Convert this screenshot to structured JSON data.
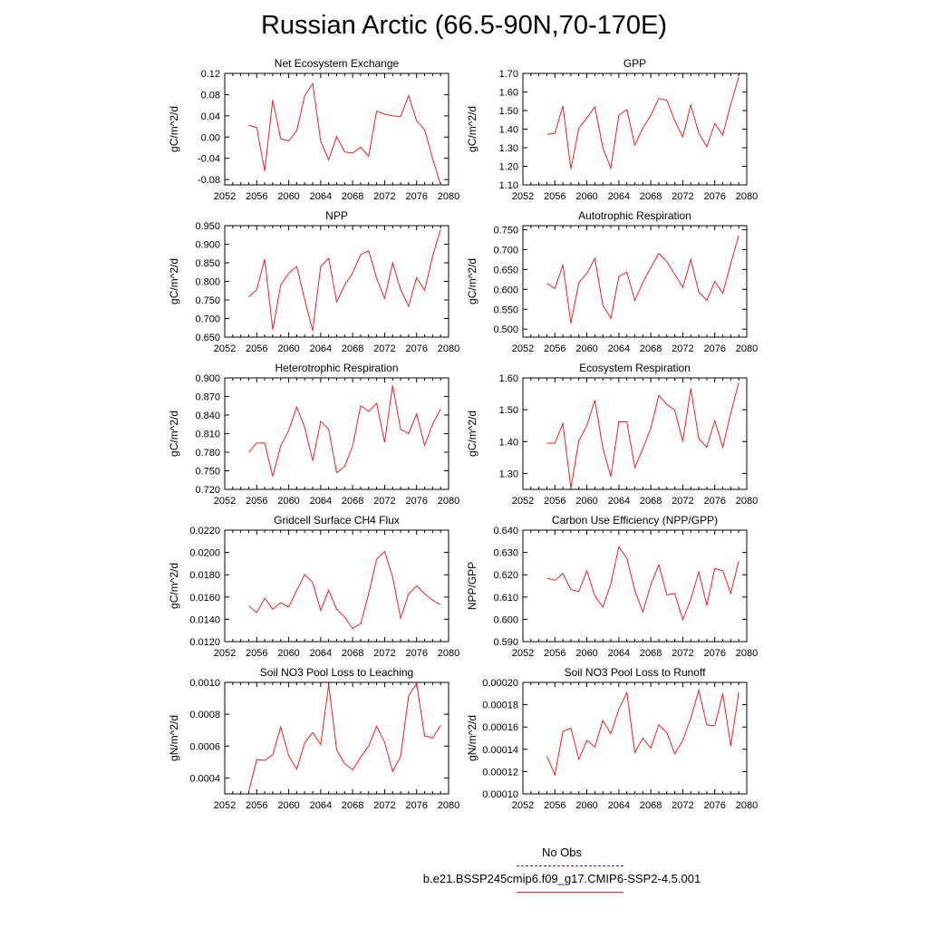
{
  "title": "Russian Arctic (66.5-90N,70-170E)",
  "legend": {
    "obs_label": "No Obs",
    "model_label": "b.e21.BSSP245cmip6.f09_g17.CMIP6-SSP2-4.5.001",
    "obs_color": "#2222cc",
    "model_color": "#ee2222"
  },
  "chart_data": [
    {
      "type": "line",
      "title": "Net Ecosystem Exchange",
      "ylabel": "gC/m^2/d",
      "xlim": [
        2052,
        2080
      ],
      "ylim": [
        -0.09,
        0.12
      ],
      "xticks": [
        "2052",
        "2056",
        "2060",
        "2064",
        "2068",
        "2072",
        "2076",
        "2080"
      ],
      "yticks": [
        "0.12",
        "0.08",
        "0.04",
        "0.00",
        "-0.04",
        "-0.08"
      ],
      "ytick_values": [
        0.12,
        0.08,
        0.04,
        0.0,
        -0.04,
        -0.08
      ],
      "x": [
        2055,
        2056,
        2057,
        2058,
        2059,
        2060,
        2061,
        2062,
        2063,
        2064,
        2065,
        2066,
        2067,
        2068,
        2069,
        2070,
        2071,
        2072,
        2073,
        2074,
        2075,
        2076,
        2077,
        2078,
        2079
      ],
      "series": [
        {
          "values": [
            0.022,
            0.018,
            -0.064,
            0.07,
            -0.003,
            -0.007,
            0.012,
            0.078,
            0.101,
            -0.008,
            -0.043,
            0.001,
            -0.028,
            -0.03,
            -0.019,
            -0.036,
            0.049,
            0.043,
            0.04,
            0.039,
            0.078,
            0.031,
            0.014,
            -0.04,
            -0.09
          ]
        }
      ]
    },
    {
      "type": "line",
      "title": "GPP",
      "ylabel": "gC/m^2/d",
      "xlim": [
        2052,
        2080
      ],
      "ylim": [
        1.1,
        1.7
      ],
      "xticks": [
        "2052",
        "2056",
        "2060",
        "2064",
        "2068",
        "2072",
        "2076",
        "2080"
      ],
      "yticks": [
        "1.70",
        "1.60",
        "1.50",
        "1.40",
        "1.30",
        "1.20",
        "1.10"
      ],
      "ytick_values": [
        1.7,
        1.6,
        1.5,
        1.4,
        1.3,
        1.2,
        1.1
      ],
      "x": [
        2055,
        2056,
        2057,
        2058,
        2059,
        2060,
        2061,
        2062,
        2063,
        2064,
        2065,
        2066,
        2067,
        2068,
        2069,
        2070,
        2071,
        2072,
        2073,
        2074,
        2075,
        2076,
        2077,
        2078,
        2079
      ],
      "series": [
        {
          "values": [
            1.372,
            1.377,
            1.525,
            1.185,
            1.405,
            1.46,
            1.52,
            1.3,
            1.19,
            1.475,
            1.505,
            1.315,
            1.405,
            1.475,
            1.565,
            1.555,
            1.445,
            1.358,
            1.53,
            1.378,
            1.305,
            1.43,
            1.368,
            1.535,
            1.68
          ]
        }
      ]
    },
    {
      "type": "line",
      "title": "NPP",
      "ylabel": "gC/m^2/d",
      "xlim": [
        2052,
        2080
      ],
      "ylim": [
        0.65,
        0.95
      ],
      "xticks": [
        "2052",
        "2056",
        "2060",
        "2064",
        "2068",
        "2072",
        "2076",
        "2080"
      ],
      "yticks": [
        "0.950",
        "0.900",
        "0.850",
        "0.800",
        "0.750",
        "0.700",
        "0.650"
      ],
      "ytick_values": [
        0.95,
        0.9,
        0.85,
        0.8,
        0.75,
        0.7,
        0.65
      ],
      "x": [
        2055,
        2056,
        2057,
        2058,
        2059,
        2060,
        2061,
        2062,
        2063,
        2064,
        2065,
        2066,
        2067,
        2068,
        2069,
        2070,
        2071,
        2072,
        2073,
        2074,
        2075,
        2076,
        2077,
        2078,
        2079
      ],
      "series": [
        {
          "values": [
            0.758,
            0.778,
            0.86,
            0.67,
            0.79,
            0.822,
            0.84,
            0.752,
            0.667,
            0.84,
            0.862,
            0.745,
            0.79,
            0.822,
            0.872,
            0.882,
            0.808,
            0.754,
            0.85,
            0.778,
            0.733,
            0.81,
            0.776,
            0.868,
            0.94
          ]
        }
      ]
    },
    {
      "type": "line",
      "title": "Autotrophic Respiration",
      "ylabel": "gC/m^2/d",
      "xlim": [
        2052,
        2080
      ],
      "ylim": [
        0.48,
        0.76
      ],
      "xticks": [
        "2052",
        "2056",
        "2060",
        "2064",
        "2068",
        "2072",
        "2076",
        "2080"
      ],
      "yticks": [
        "0.750",
        "0.700",
        "0.650",
        "0.600",
        "0.550",
        "0.500"
      ],
      "ytick_values": [
        0.75,
        0.7,
        0.65,
        0.6,
        0.55,
        0.5
      ],
      "x": [
        2055,
        2056,
        2057,
        2058,
        2059,
        2060,
        2061,
        2062,
        2063,
        2064,
        2065,
        2066,
        2067,
        2068,
        2069,
        2070,
        2071,
        2072,
        2073,
        2074,
        2075,
        2076,
        2077,
        2078,
        2079
      ],
      "series": [
        {
          "values": [
            0.615,
            0.602,
            0.662,
            0.515,
            0.617,
            0.64,
            0.678,
            0.56,
            0.527,
            0.632,
            0.643,
            0.572,
            0.617,
            0.655,
            0.69,
            0.67,
            0.638,
            0.605,
            0.675,
            0.593,
            0.572,
            0.62,
            0.59,
            0.665,
            0.735
          ]
        }
      ]
    },
    {
      "type": "line",
      "title": "Heterotrophic Respiration",
      "ylabel": "gC/m^2/d",
      "xlim": [
        2052,
        2080
      ],
      "ylim": [
        0.72,
        0.9
      ],
      "xticks": [
        "2052",
        "2056",
        "2060",
        "2064",
        "2068",
        "2072",
        "2076",
        "2080"
      ],
      "yticks": [
        "0.900",
        "0.870",
        "0.840",
        "0.810",
        "0.780",
        "0.750",
        "0.720"
      ],
      "ytick_values": [
        0.9,
        0.87,
        0.84,
        0.81,
        0.78,
        0.75,
        0.72
      ],
      "x": [
        2055,
        2056,
        2057,
        2058,
        2059,
        2060,
        2061,
        2062,
        2063,
        2064,
        2065,
        2066,
        2067,
        2068,
        2069,
        2070,
        2071,
        2072,
        2073,
        2074,
        2075,
        2076,
        2077,
        2078,
        2079
      ],
      "series": [
        {
          "values": [
            0.78,
            0.795,
            0.795,
            0.741,
            0.79,
            0.815,
            0.853,
            0.82,
            0.766,
            0.83,
            0.817,
            0.747,
            0.757,
            0.79,
            0.855,
            0.846,
            0.859,
            0.796,
            0.888,
            0.817,
            0.81,
            0.842,
            0.791,
            0.825,
            0.85
          ]
        }
      ]
    },
    {
      "type": "line",
      "title": "Ecosystem Respiration",
      "ylabel": "gC/m^2/d",
      "xlim": [
        2052,
        2080
      ],
      "ylim": [
        1.25,
        1.6
      ],
      "xticks": [
        "2052",
        "2056",
        "2060",
        "2064",
        "2068",
        "2072",
        "2076",
        "2080"
      ],
      "yticks": [
        "1.60",
        "1.50",
        "1.40",
        "1.30"
      ],
      "ytick_values": [
        1.6,
        1.5,
        1.4,
        1.3
      ],
      "x": [
        2055,
        2056,
        2057,
        2058,
        2059,
        2060,
        2061,
        2062,
        2063,
        2064,
        2065,
        2066,
        2067,
        2068,
        2069,
        2070,
        2071,
        2072,
        2073,
        2074,
        2075,
        2076,
        2077,
        2078,
        2079
      ],
      "series": [
        {
          "values": [
            1.395,
            1.395,
            1.457,
            1.254,
            1.403,
            1.45,
            1.53,
            1.38,
            1.29,
            1.462,
            1.462,
            1.318,
            1.378,
            1.442,
            1.545,
            1.517,
            1.498,
            1.4,
            1.567,
            1.41,
            1.382,
            1.466,
            1.382,
            1.49,
            1.585
          ]
        }
      ]
    },
    {
      "type": "line",
      "title": "Gridcell Surface CH4 Flux",
      "ylabel": "gC/m^2/d",
      "xlim": [
        2052,
        2080
      ],
      "ylim": [
        0.012,
        0.022
      ],
      "xticks": [
        "2052",
        "2056",
        "2060",
        "2064",
        "2068",
        "2072",
        "2076",
        "2080"
      ],
      "yticks": [
        "0.0220",
        "0.0200",
        "0.0180",
        "0.0160",
        "0.0140",
        "0.0120"
      ],
      "ytick_values": [
        0.022,
        0.02,
        0.018,
        0.016,
        0.014,
        0.012
      ],
      "x": [
        2055,
        2056,
        2057,
        2058,
        2059,
        2060,
        2061,
        2062,
        2063,
        2064,
        2065,
        2066,
        2067,
        2068,
        2069,
        2070,
        2071,
        2072,
        2073,
        2074,
        2075,
        2076,
        2077,
        2078,
        2079
      ],
      "series": [
        {
          "values": [
            0.0152,
            0.0146,
            0.0159,
            0.0149,
            0.0155,
            0.0151,
            0.0166,
            0.018,
            0.0173,
            0.0148,
            0.0166,
            0.0149,
            0.0142,
            0.0132,
            0.0136,
            0.0163,
            0.0194,
            0.0201,
            0.0178,
            0.0141,
            0.0163,
            0.017,
            0.0163,
            0.0157,
            0.0153
          ]
        }
      ]
    },
    {
      "type": "line",
      "title": "Carbon Use Efficiency (NPP/GPP)",
      "ylabel": "NPP/GPP",
      "xlim": [
        2052,
        2080
      ],
      "ylim": [
        0.59,
        0.64
      ],
      "xticks": [
        "2052",
        "2056",
        "2060",
        "2064",
        "2068",
        "2072",
        "2076",
        "2080"
      ],
      "yticks": [
        "0.640",
        "0.630",
        "0.620",
        "0.610",
        "0.600",
        "0.590"
      ],
      "ytick_values": [
        0.64,
        0.63,
        0.62,
        0.61,
        0.6,
        0.59
      ],
      "x": [
        2055,
        2056,
        2057,
        2058,
        2059,
        2060,
        2061,
        2062,
        2063,
        2064,
        2065,
        2066,
        2067,
        2068,
        2069,
        2070,
        2071,
        2072,
        2073,
        2074,
        2075,
        2076,
        2077,
        2078,
        2079
      ],
      "series": [
        {
          "values": [
            0.6185,
            0.6175,
            0.6205,
            0.6133,
            0.6125,
            0.6218,
            0.6105,
            0.6055,
            0.616,
            0.6325,
            0.6275,
            0.613,
            0.6033,
            0.6155,
            0.6245,
            0.611,
            0.6115,
            0.5998,
            0.609,
            0.6213,
            0.6062,
            0.6228,
            0.6218,
            0.6117,
            0.6262
          ]
        }
      ]
    },
    {
      "type": "line",
      "title": "Soil NO3 Pool Loss to Leaching",
      "ylabel": "gN/m^2/d",
      "xlim": [
        2052,
        2080
      ],
      "ylim": [
        0.0003,
        0.001
      ],
      "xticks": [
        "2052",
        "2056",
        "2060",
        "2064",
        "2068",
        "2072",
        "2076",
        "2080"
      ],
      "yticks": [
        "0.0010",
        "0.0008",
        "0.0006",
        "0.0004"
      ],
      "ytick_values": [
        0.001,
        0.0008,
        0.0006,
        0.0004
      ],
      "x": [
        2055,
        2056,
        2057,
        2058,
        2059,
        2060,
        2061,
        2062,
        2063,
        2064,
        2065,
        2066,
        2067,
        2068,
        2069,
        2070,
        2071,
        2072,
        2073,
        2074,
        2075,
        2076,
        2077,
        2078,
        2079
      ],
      "series": [
        {
          "values": [
            0.000315,
            0.000515,
            0.00051,
            0.000545,
            0.00072,
            0.00054,
            0.000455,
            0.00062,
            0.000685,
            0.00061,
            0.000985,
            0.000575,
            0.00049,
            0.00045,
            0.00053,
            0.0006,
            0.000725,
            0.000625,
            0.00044,
            0.000535,
            0.000915,
            0.000995,
            0.000665,
            0.00065,
            0.00073
          ]
        }
      ]
    },
    {
      "type": "line",
      "title": "Soil NO3 Pool Loss to Runoff",
      "ylabel": "gN/m^2/d",
      "xlim": [
        2052,
        2080
      ],
      "ylim": [
        0.0001,
        0.0002
      ],
      "xticks": [
        "2052",
        "2056",
        "2060",
        "2064",
        "2068",
        "2072",
        "2076",
        "2080"
      ],
      "yticks": [
        "0.00020",
        "0.00018",
        "0.00016",
        "0.00014",
        "0.00012",
        "0.00010"
      ],
      "ytick_values": [
        0.0002,
        0.00018,
        0.00016,
        0.00014,
        0.00012,
        0.0001
      ],
      "x": [
        2055,
        2056,
        2057,
        2058,
        2059,
        2060,
        2061,
        2062,
        2063,
        2064,
        2065,
        2066,
        2067,
        2068,
        2069,
        2070,
        2071,
        2072,
        2073,
        2074,
        2075,
        2076,
        2077,
        2078,
        2079
      ],
      "series": [
        {
          "values": [
            0.000134,
            0.000117,
            0.000156,
            0.000159,
            0.000131,
            0.000148,
            0.000142,
            0.000166,
            0.000154,
            0.000176,
            0.000191,
            0.000137,
            0.00015,
            0.000141,
            0.000162,
            0.000155,
            0.000136,
            0.000148,
            0.000168,
            0.000193,
            0.000162,
            0.000161,
            0.00019,
            0.000143,
            0.000191
          ]
        }
      ]
    }
  ]
}
